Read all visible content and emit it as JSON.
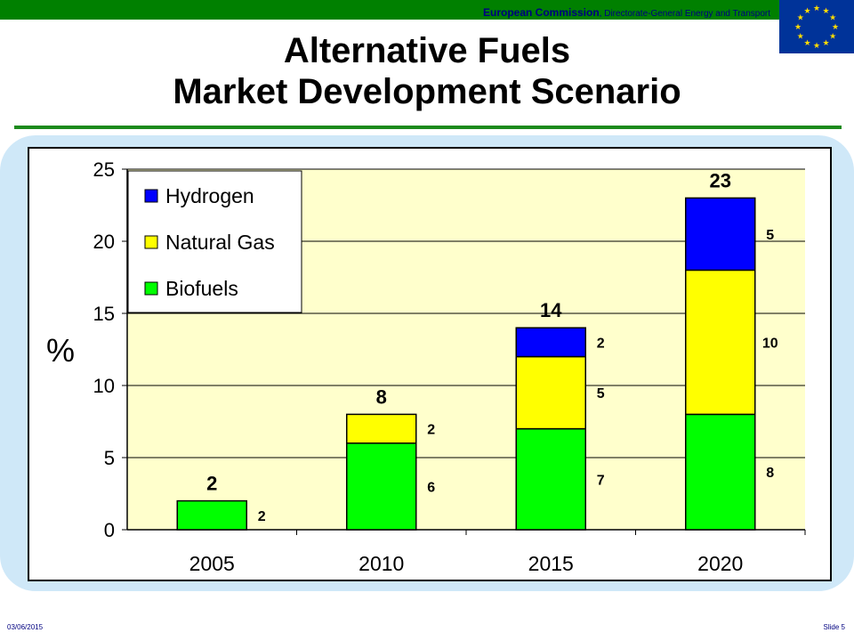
{
  "header": {
    "org": "European Commission",
    "dept": ", Directorate-General Energy and Transport"
  },
  "title": {
    "line1": "Alternative Fuels",
    "line2": "Market Development Scenario"
  },
  "footer": {
    "date": "03/06/2015",
    "slide": "Slide 5"
  },
  "colors": {
    "top_bar": "#008000",
    "flag": "#003399",
    "flag_star": "#ffdd00",
    "plot_bg": "#ffffcc",
    "biofuels": "#00ff00",
    "natural_gas": "#ffff00",
    "hydrogen": "#0000ff"
  },
  "chart_data": {
    "type": "bar",
    "stacked": true,
    "categories": [
      "2005",
      "2010",
      "2015",
      "2020"
    ],
    "series": [
      {
        "name": "Biofuels",
        "values": [
          2,
          6,
          7,
          8
        ],
        "labels": [
          "2",
          "6",
          "7",
          "8"
        ]
      },
      {
        "name": "Natural Gas",
        "values": [
          0,
          2,
          5,
          10
        ],
        "labels": [
          "",
          "2",
          "5",
          "10"
        ]
      },
      {
        "name": "Hydrogen",
        "values": [
          0,
          0,
          2,
          5
        ],
        "labels": [
          "",
          "",
          "2",
          "5"
        ]
      }
    ],
    "totals": [
      "2",
      "8",
      "14",
      "23"
    ],
    "legend_entries": [
      "Hydrogen",
      "Natural Gas",
      "Biofuels"
    ],
    "legend_position": "top-left",
    "ylabel": "%",
    "ylim": [
      0,
      25
    ],
    "yticks": [
      "0",
      "5",
      "10",
      "15",
      "20",
      "25"
    ],
    "grid": true
  }
}
